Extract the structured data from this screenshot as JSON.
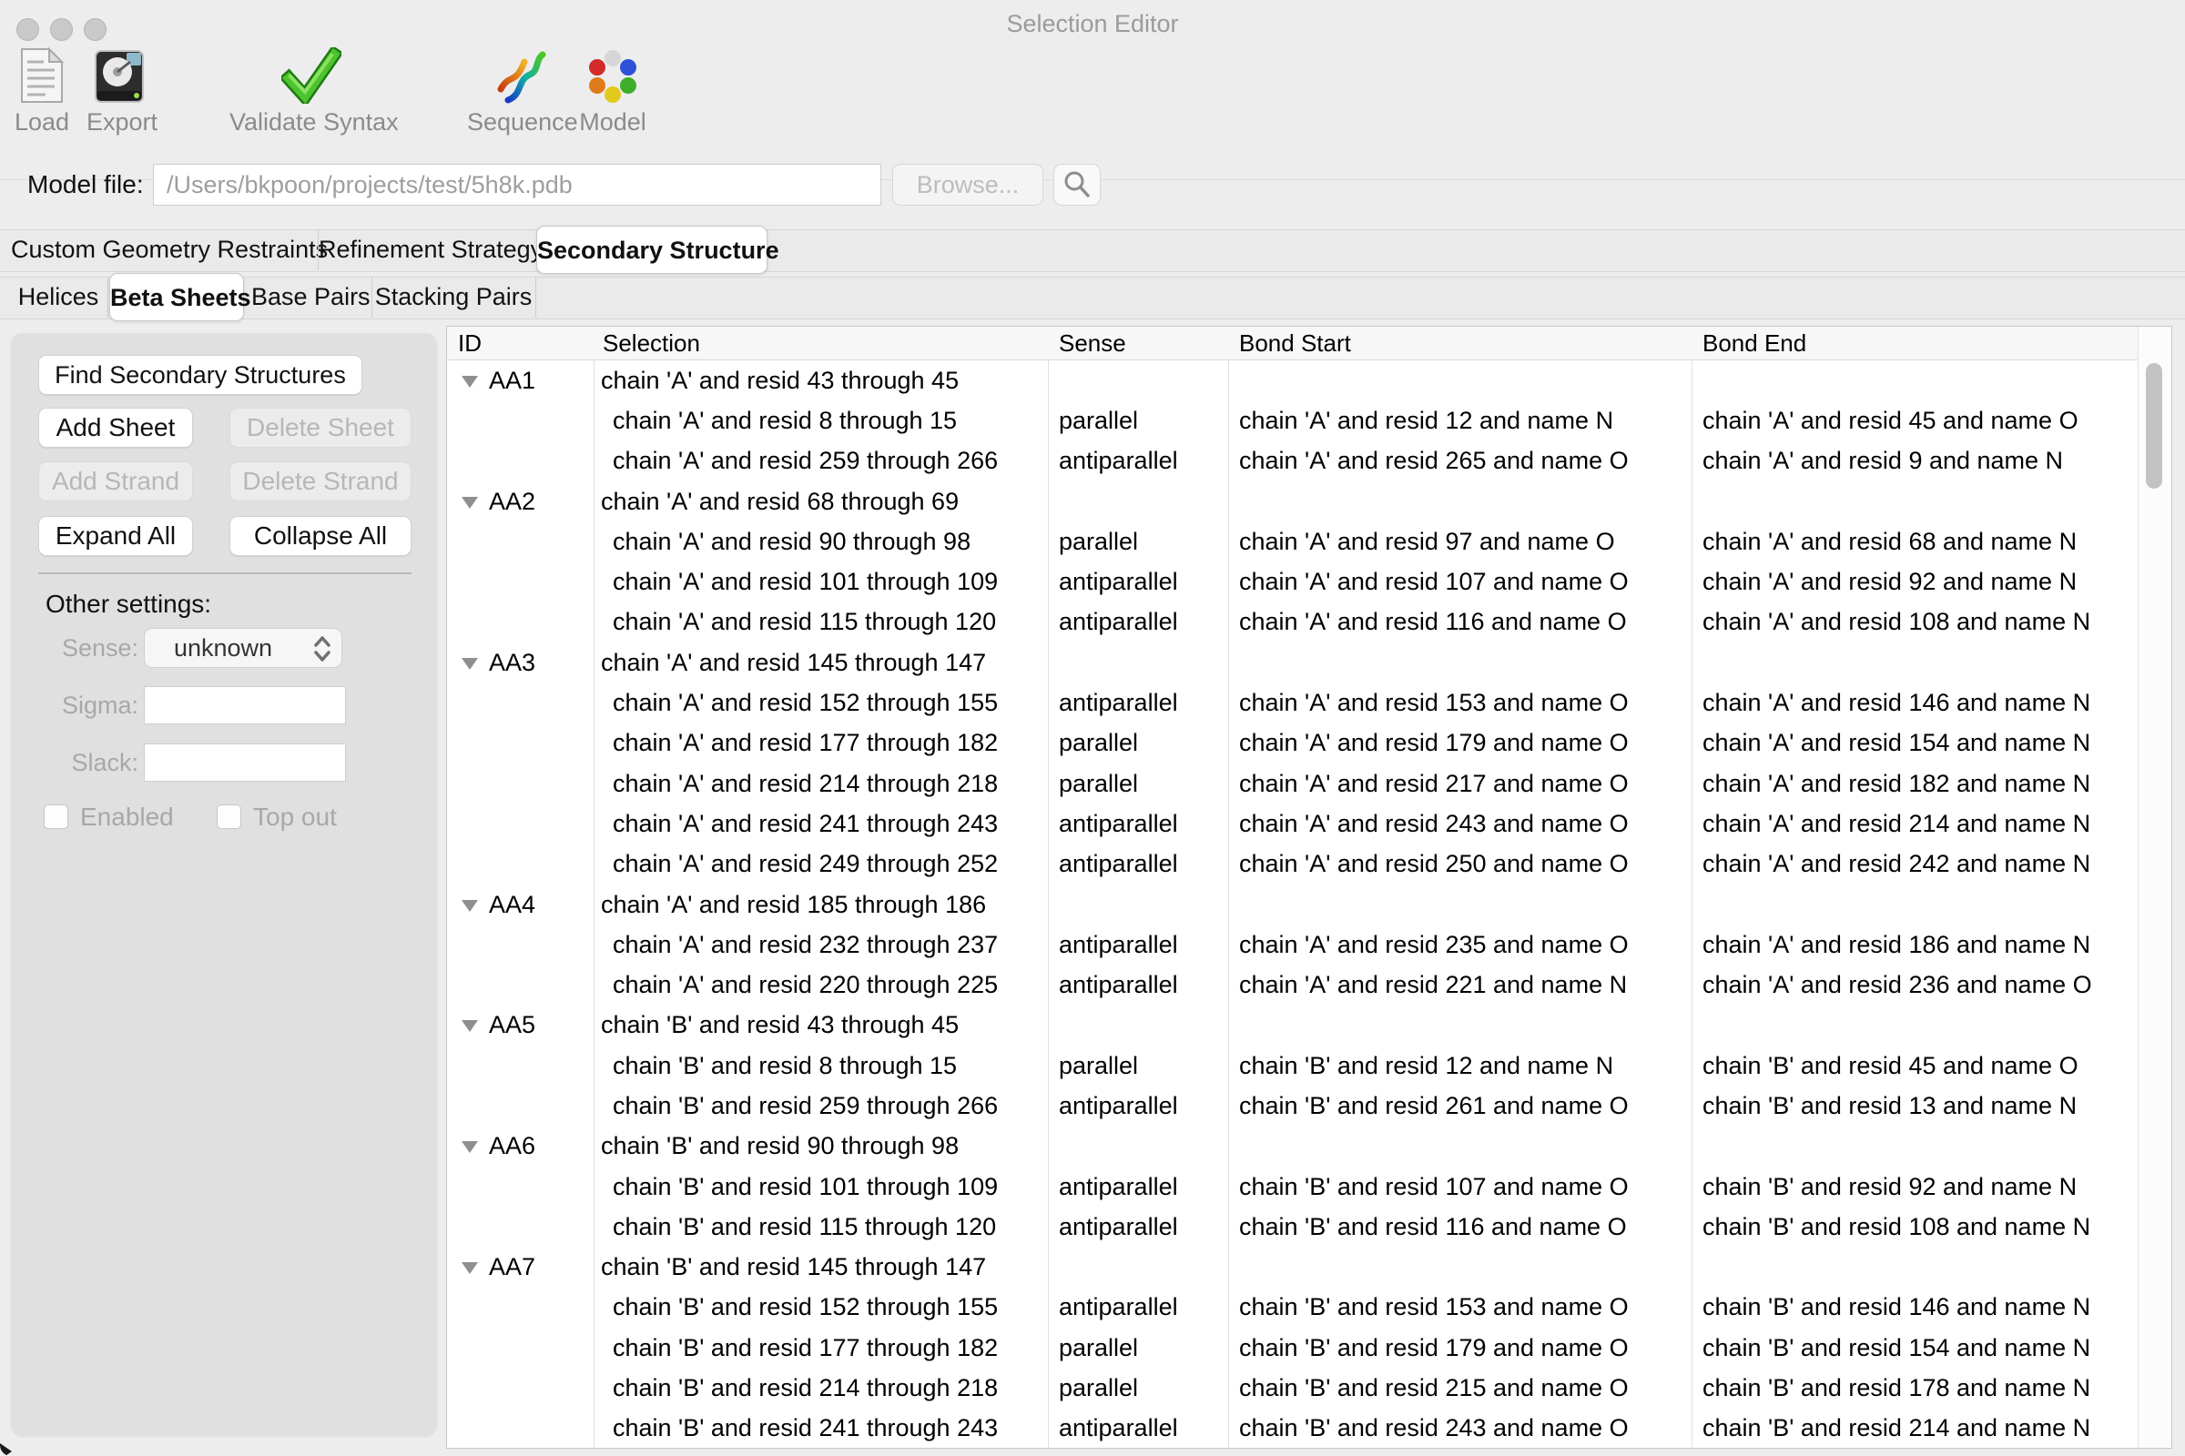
{
  "window": {
    "title": "Selection Editor"
  },
  "toolbar": {
    "items": [
      {
        "label": "Load",
        "icon": "document-icon"
      },
      {
        "label": "Export",
        "icon": "hard-drive-icon"
      },
      {
        "label": "Validate Syntax",
        "icon": "green-check-icon"
      },
      {
        "label": "Sequence",
        "icon": "protein-ribbon-icon"
      },
      {
        "label": "Model",
        "icon": "molecule-icon"
      }
    ]
  },
  "model_file_bar": {
    "label": "Model file:",
    "path": "/Users/bkpoon/projects/test/5h8k.pdb",
    "browse_label": "Browse...",
    "search_icon": "magnifier-icon"
  },
  "main_tabs": [
    {
      "label": "Custom Geometry Restraints",
      "selected": false
    },
    {
      "label": "Refinement Strategy",
      "selected": false
    },
    {
      "label": "Secondary Structure",
      "selected": true
    }
  ],
  "sub_tabs": [
    {
      "label": "Helices",
      "selected": false
    },
    {
      "label": "Beta Sheets",
      "selected": true
    },
    {
      "label": "Base Pairs",
      "selected": false
    },
    {
      "label": "Stacking Pairs",
      "selected": false
    }
  ],
  "side_panel": {
    "buttons": [
      {
        "label": "Find Secondary Structures",
        "enabled": true
      },
      {
        "label": "Add Sheet",
        "enabled": true
      },
      {
        "label": "Delete Sheet",
        "enabled": false
      },
      {
        "label": "Add Strand",
        "enabled": false
      },
      {
        "label": "Delete Strand",
        "enabled": false
      },
      {
        "label": "Expand All",
        "enabled": true
      },
      {
        "label": "Collapse All",
        "enabled": true
      }
    ],
    "other_settings": {
      "heading": "Other settings:",
      "sense": {
        "label": "Sense:",
        "value": "unknown",
        "enabled": false
      },
      "sigma": {
        "label": "Sigma:",
        "value": ""
      },
      "slack": {
        "label": "Slack:",
        "value": ""
      },
      "checkboxes": [
        {
          "label": "Enabled",
          "checked": false
        },
        {
          "label": "Top out",
          "checked": false
        }
      ]
    }
  },
  "sheet_table": {
    "columns": [
      "ID",
      "Selection",
      "Sense",
      "Bond Start",
      "Bond End"
    ],
    "groups": [
      {
        "id": "AA1",
        "selection": "chain 'A' and resid 43 through 45",
        "strands": [
          {
            "selection": "chain 'A' and resid 8 through 15",
            "sense": "parallel",
            "bond_start": "chain 'A' and resid 12 and name N",
            "bond_end": "chain 'A' and resid 45 and name O"
          },
          {
            "selection": "chain 'A' and resid 259 through 266",
            "sense": "antiparallel",
            "bond_start": "chain 'A' and resid 265 and name O",
            "bond_end": "chain 'A' and resid 9 and name N"
          }
        ]
      },
      {
        "id": "AA2",
        "selection": "chain 'A' and resid 68 through 69",
        "strands": [
          {
            "selection": "chain 'A' and resid 90 through 98",
            "sense": "parallel",
            "bond_start": "chain 'A' and resid 97 and name O",
            "bond_end": "chain 'A' and resid 68 and name N"
          },
          {
            "selection": "chain 'A' and resid 101 through 109",
            "sense": "antiparallel",
            "bond_start": "chain 'A' and resid 107 and name O",
            "bond_end": "chain 'A' and resid 92 and name N"
          },
          {
            "selection": "chain 'A' and resid 115 through 120",
            "sense": "antiparallel",
            "bond_start": "chain 'A' and resid 116 and name O",
            "bond_end": "chain 'A' and resid 108 and name N"
          }
        ]
      },
      {
        "id": "AA3",
        "selection": "chain 'A' and resid 145 through 147",
        "strands": [
          {
            "selection": "chain 'A' and resid 152 through 155",
            "sense": "antiparallel",
            "bond_start": "chain 'A' and resid 153 and name O",
            "bond_end": "chain 'A' and resid 146 and name N"
          },
          {
            "selection": "chain 'A' and resid 177 through 182",
            "sense": "parallel",
            "bond_start": "chain 'A' and resid 179 and name O",
            "bond_end": "chain 'A' and resid 154 and name N"
          },
          {
            "selection": "chain 'A' and resid 214 through 218",
            "sense": "parallel",
            "bond_start": "chain 'A' and resid 217 and name O",
            "bond_end": "chain 'A' and resid 182 and name N"
          },
          {
            "selection": "chain 'A' and resid 241 through 243",
            "sense": "antiparallel",
            "bond_start": "chain 'A' and resid 243 and name O",
            "bond_end": "chain 'A' and resid 214 and name N"
          },
          {
            "selection": "chain 'A' and resid 249 through 252",
            "sense": "antiparallel",
            "bond_start": "chain 'A' and resid 250 and name O",
            "bond_end": "chain 'A' and resid 242 and name N"
          }
        ]
      },
      {
        "id": "AA4",
        "selection": "chain 'A' and resid 185 through 186",
        "strands": [
          {
            "selection": "chain 'A' and resid 232 through 237",
            "sense": "antiparallel",
            "bond_start": "chain 'A' and resid 235 and name O",
            "bond_end": "chain 'A' and resid 186 and name N"
          },
          {
            "selection": "chain 'A' and resid 220 through 225",
            "sense": "antiparallel",
            "bond_start": "chain 'A' and resid 221 and name N",
            "bond_end": "chain 'A' and resid 236 and name O"
          }
        ]
      },
      {
        "id": "AA5",
        "selection": "chain 'B' and resid 43 through 45",
        "strands": [
          {
            "selection": "chain 'B' and resid 8 through 15",
            "sense": "parallel",
            "bond_start": "chain 'B' and resid 12 and name N",
            "bond_end": "chain 'B' and resid 45 and name O"
          },
          {
            "selection": "chain 'B' and resid 259 through 266",
            "sense": "antiparallel",
            "bond_start": "chain 'B' and resid 261 and name O",
            "bond_end": "chain 'B' and resid 13 and name N"
          }
        ]
      },
      {
        "id": "AA6",
        "selection": "chain 'B' and resid 90 through 98",
        "strands": [
          {
            "selection": "chain 'B' and resid 101 through 109",
            "sense": "antiparallel",
            "bond_start": "chain 'B' and resid 107 and name O",
            "bond_end": "chain 'B' and resid 92 and name N"
          },
          {
            "selection": "chain 'B' and resid 115 through 120",
            "sense": "antiparallel",
            "bond_start": "chain 'B' and resid 116 and name O",
            "bond_end": "chain 'B' and resid 108 and name N"
          }
        ]
      },
      {
        "id": "AA7",
        "selection": "chain 'B' and resid 145 through 147",
        "strands": [
          {
            "selection": "chain 'B' and resid 152 through 155",
            "sense": "antiparallel",
            "bond_start": "chain 'B' and resid 153 and name O",
            "bond_end": "chain 'B' and resid 146 and name N"
          },
          {
            "selection": "chain 'B' and resid 177 through 182",
            "sense": "parallel",
            "bond_start": "chain 'B' and resid 179 and name O",
            "bond_end": "chain 'B' and resid 154 and name N"
          },
          {
            "selection": "chain 'B' and resid 214 through 218",
            "sense": "parallel",
            "bond_start": "chain 'B' and resid 215 and name O",
            "bond_end": "chain 'B' and resid 178 and name N"
          },
          {
            "selection": "chain 'B' and resid 241 through 243",
            "sense": "antiparallel",
            "bond_start": "chain 'B' and resid 243 and name O",
            "bond_end": "chain 'B' and resid 214 and name N"
          }
        ]
      }
    ]
  },
  "colors": {
    "window_bg": "#ededed",
    "panel_bg": "#e0e0e0",
    "accent_green": "#2fa818",
    "disabled_text": "#b7b7b7",
    "table_line": "#e0e0e0"
  }
}
